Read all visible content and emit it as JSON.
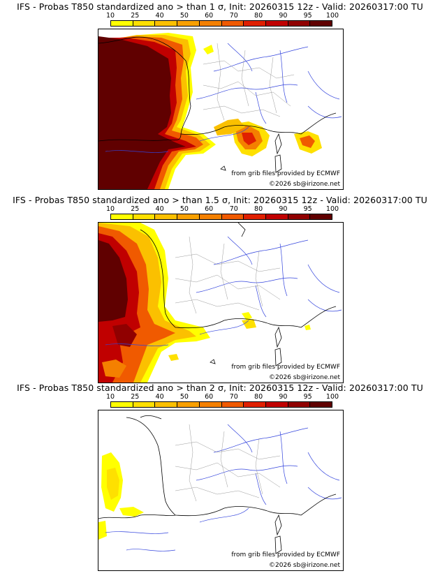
{
  "colorbar": {
    "ticks": [
      "10",
      "25",
      "40",
      "50",
      "60",
      "70",
      "80",
      "90",
      "95",
      "100"
    ],
    "colors": [
      "#ffff00",
      "#fee000",
      "#fbc000",
      "#f8a000",
      "#f48000",
      "#f05a00",
      "#e02000",
      "#c00000",
      "#900000",
      "#600000"
    ]
  },
  "panels": [
    {
      "title": "IFS - Probas T850  standardized ano > than 1 σ, Init: 20260315 12z - Valid: 20260317:00 TU",
      "credit_source": "from grib files provided by ECMWF",
      "credit_copyright": "©2026 sb@irizone.net"
    },
    {
      "title": "IFS - Probas T850  standardized ano > than 1.5 σ, Init: 20260315 12z - Valid: 20260317:00 TU",
      "credit_source": "from grib files provided by ECMWF",
      "credit_copyright": "©2026 sb@irizone.net"
    },
    {
      "title": "IFS - Probas T850  standardized ano > than 2 σ, Init: 20260315 12z - Valid: 20260317:00 TU",
      "credit_source": "from grib files provided by ECMWF",
      "credit_copyright": "©2026 sb@irizone.net"
    }
  ]
}
